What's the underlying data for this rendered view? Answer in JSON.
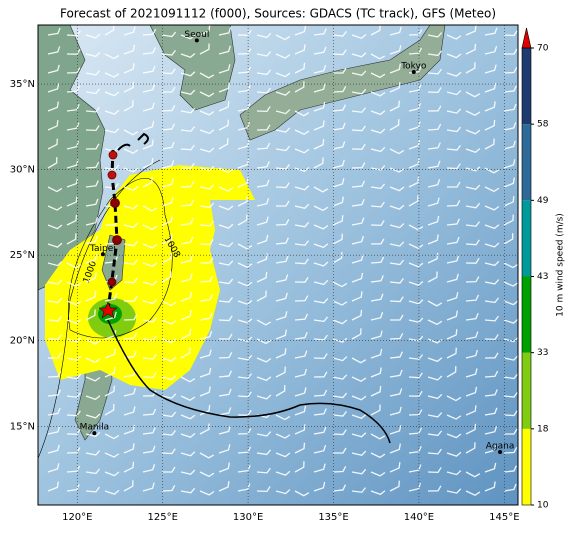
{
  "title": "Forecast of 2021091112 (f000), Sources: GDACS (TC track), GFS (Meteo)",
  "map": {
    "lon_range": [
      117.7,
      145.8
    ],
    "lat_range": [
      10.4,
      38.45
    ],
    "lon_ticks": [
      {
        "value": 120,
        "label": "120°E"
      },
      {
        "value": 125,
        "label": "125°E"
      },
      {
        "value": 130,
        "label": "130°E"
      },
      {
        "value": 135,
        "label": "135°E"
      },
      {
        "value": 140,
        "label": "140°E"
      },
      {
        "value": 145,
        "label": "145°E"
      }
    ],
    "lat_ticks": [
      {
        "value": 15,
        "label": "15°N"
      },
      {
        "value": 20,
        "label": "20°N"
      },
      {
        "value": 25,
        "label": "25°N"
      },
      {
        "value": 30,
        "label": "30°N"
      },
      {
        "value": 35,
        "label": "35°N"
      }
    ],
    "cities": [
      {
        "name": "Seoul",
        "lon": 127.0,
        "lat": 37.55
      },
      {
        "name": "Tokyo",
        "lon": 139.7,
        "lat": 35.7
      },
      {
        "name": "Taipei",
        "lon": 121.5,
        "lat": 25.05
      },
      {
        "name": "Manila",
        "lon": 121.0,
        "lat": 14.6
      },
      {
        "name": "Agana",
        "lon": 144.75,
        "lat": 13.5
      }
    ],
    "contour_labels": [
      "1008",
      "1000"
    ]
  },
  "colorbar": {
    "label": "10 m wind speed (m/s)",
    "ticks": [
      10,
      18,
      33,
      43,
      49,
      58,
      70
    ],
    "colors": [
      "#ffff00",
      "#80cc10",
      "#00a000",
      "#009a9a",
      "#2e6a98",
      "#1e3a6e"
    ],
    "extend_color": "#e00000"
  }
}
